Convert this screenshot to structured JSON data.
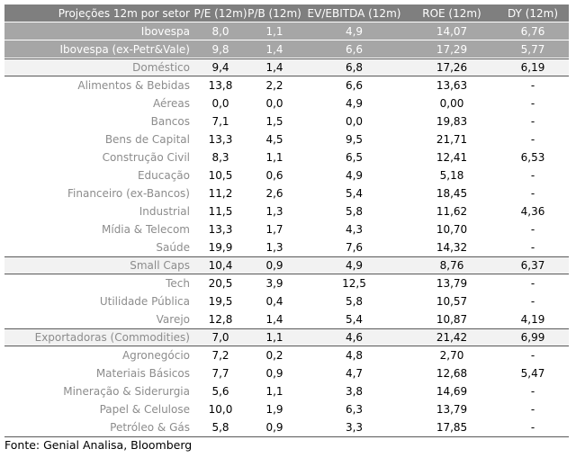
{
  "header": [
    "Projeções 12m por setor",
    "P/E (12m)",
    "P/B (12m)",
    "EV/EBITDA (12m)",
    "ROE (12m)",
    "DY (12m)"
  ],
  "rows": [
    {
      "style": "dark",
      "cells": [
        "Ibovespa",
        "8,0",
        "1,1",
        "4,9",
        "14,07",
        "6,76"
      ]
    },
    {
      "style": "dark",
      "cells": [
        "Ibovespa (ex-Petr&Vale)",
        "9,8",
        "1,4",
        "6,6",
        "17,29",
        "5,77"
      ]
    },
    {
      "style": "light",
      "cells": [
        "Doméstico",
        "9,4",
        "1,4",
        "6,8",
        "17,26",
        "6,19"
      ]
    },
    {
      "style": "normal",
      "cells": [
        "Alimentos & Bebidas",
        "13,8",
        "2,2",
        "6,6",
        "13,63",
        "-"
      ]
    },
    {
      "style": "normal",
      "cells": [
        "Aéreas",
        "0,0",
        "0,0",
        "4,9",
        "0,00",
        "-"
      ]
    },
    {
      "style": "normal",
      "cells": [
        "Bancos",
        "7,1",
        "1,5",
        "0,0",
        "19,83",
        "-"
      ]
    },
    {
      "style": "normal",
      "cells": [
        "Bens de Capital",
        "13,3",
        "4,5",
        "9,5",
        "21,71",
        "-"
      ]
    },
    {
      "style": "normal",
      "cells": [
        "Construção Civil",
        "8,3",
        "1,1",
        "6,5",
        "12,41",
        "6,53"
      ]
    },
    {
      "style": "normal",
      "cells": [
        "Educação",
        "10,5",
        "0,6",
        "4,9",
        "5,18",
        "-"
      ]
    },
    {
      "style": "normal",
      "cells": [
        "Financeiro (ex-Bancos)",
        "11,2",
        "2,6",
        "5,4",
        "18,45",
        "-"
      ]
    },
    {
      "style": "normal",
      "cells": [
        "Industrial",
        "11,5",
        "1,3",
        "5,8",
        "11,62",
        "4,36"
      ]
    },
    {
      "style": "normal",
      "cells": [
        "Mídia & Telecom",
        "13,3",
        "1,7",
        "4,3",
        "10,70",
        "-"
      ]
    },
    {
      "style": "normal",
      "cells": [
        "Saúde",
        "19,9",
        "1,3",
        "7,6",
        "14,32",
        "-"
      ]
    },
    {
      "style": "light",
      "cells": [
        "Small Caps",
        "10,4",
        "0,9",
        "4,9",
        "8,76",
        "6,37"
      ]
    },
    {
      "style": "normal",
      "cells": [
        "Tech",
        "20,5",
        "3,9",
        "12,5",
        "13,79",
        "-"
      ]
    },
    {
      "style": "normal",
      "cells": [
        "Utilidade Pública",
        "19,5",
        "0,4",
        "5,8",
        "10,57",
        "-"
      ]
    },
    {
      "style": "normal",
      "cells": [
        "Varejo",
        "12,8",
        "1,4",
        "5,4",
        "10,87",
        "4,19"
      ]
    },
    {
      "style": "light",
      "cells": [
        "Exportadoras (Commodities)",
        "7,0",
        "1,1",
        "4,6",
        "21,42",
        "6,99"
      ]
    },
    {
      "style": "normal",
      "cells": [
        "Agronegócio",
        "7,2",
        "0,2",
        "4,8",
        "2,70",
        "-"
      ]
    },
    {
      "style": "normal",
      "cells": [
        "Materiais Básicos",
        "7,7",
        "0,9",
        "4,7",
        "12,68",
        "5,47"
      ]
    },
    {
      "style": "normal",
      "cells": [
        "Mineração & Siderurgia",
        "5,6",
        "1,1",
        "3,8",
        "14,69",
        "-"
      ]
    },
    {
      "style": "normal",
      "cells": [
        "Papel & Celulose",
        "10,0",
        "1,9",
        "6,3",
        "13,79",
        "-"
      ]
    },
    {
      "style": "normal",
      "cells": [
        "Petróleo & Gás",
        "5,8",
        "0,9",
        "3,3",
        "17,85",
        "-"
      ]
    }
  ],
  "source": "Fonte: Genial Analisa, Bloomberg"
}
